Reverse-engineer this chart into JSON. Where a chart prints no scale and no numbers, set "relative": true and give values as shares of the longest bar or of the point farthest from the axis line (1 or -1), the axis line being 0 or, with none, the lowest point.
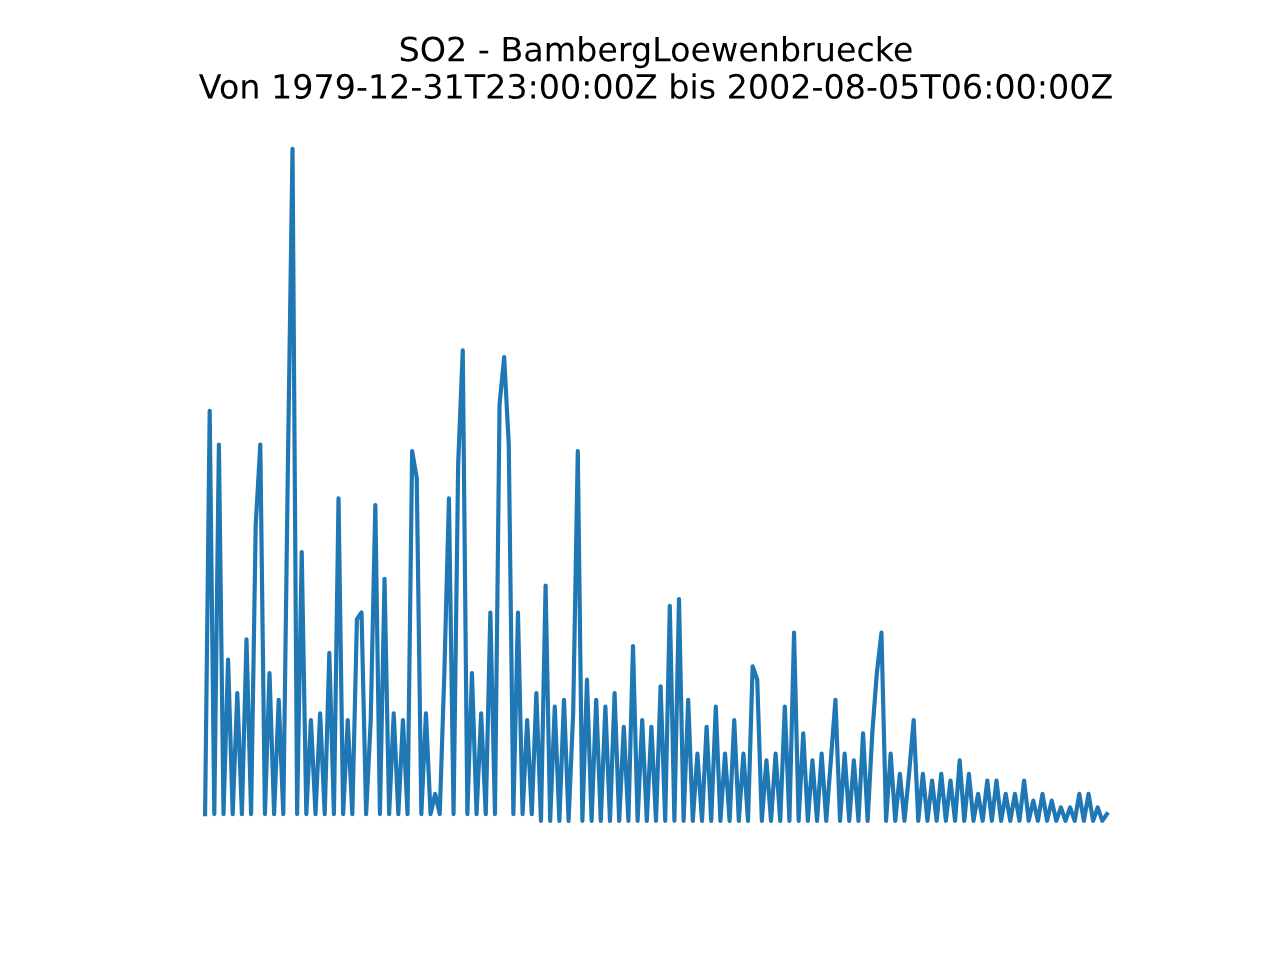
{
  "chart_data": {
    "type": "line",
    "title": "SO2 - BambergLoewenbruecke",
    "subtitle": "Von 1979-12-31T23:00:00Z bis 2002-08-05T06:00:00Z",
    "relative": true,
    "categories": [
      null,
      null,
      null,
      null,
      null,
      null,
      null,
      null,
      null,
      null,
      null,
      null,
      null,
      null,
      null,
      null,
      null,
      null,
      null,
      null,
      null,
      null,
      null,
      null,
      null,
      null,
      null,
      null,
      null,
      null,
      null,
      null,
      null,
      null,
      null,
      null,
      null,
      null,
      null,
      null,
      null,
      null,
      null,
      null,
      null,
      null,
      null,
      null,
      null,
      null,
      null,
      null,
      null,
      null,
      null,
      null,
      null,
      null,
      null,
      null,
      null,
      null,
      null,
      null,
      null,
      null,
      null,
      null,
      null,
      null,
      null,
      null,
      null,
      null,
      null,
      null,
      null,
      null,
      null,
      null,
      null,
      null,
      null,
      null,
      null,
      null,
      null,
      null,
      null,
      null,
      null,
      null,
      null,
      null,
      null,
      null,
      null,
      null,
      null,
      null,
      null,
      null,
      null,
      null,
      null,
      null,
      null,
      null,
      null,
      null,
      null,
      null,
      null,
      null,
      null,
      null,
      null,
      null,
      null,
      null,
      null,
      null,
      null,
      null,
      null,
      null,
      null,
      null,
      null,
      null,
      null,
      null,
      null,
      null,
      null,
      null,
      null,
      null,
      null,
      null,
      null,
      null,
      null,
      null,
      null,
      null,
      null,
      null,
      null,
      null,
      null,
      null,
      null,
      null,
      null,
      null,
      null,
      null,
      null,
      null,
      null,
      null,
      null,
      null,
      null,
      null,
      null,
      null,
      null,
      null,
      null,
      null,
      null,
      null,
      null,
      null,
      null,
      null,
      null,
      null,
      null,
      null,
      null,
      null,
      null,
      null,
      null,
      null,
      null,
      null,
      null,
      null,
      null,
      null,
      null,
      null,
      null
    ],
    "series": [
      {
        "color": "#1f77b4",
        "values": [
          0.01,
          0.61,
          0.01,
          0.56,
          0.01,
          0.24,
          0.01,
          0.19,
          0.01,
          0.27,
          0.01,
          0.44,
          0.56,
          0.01,
          0.22,
          0.01,
          0.18,
          0.01,
          0.53,
          1,
          0.01,
          0.4,
          0.01,
          0.15,
          0.01,
          0.16,
          0.01,
          0.25,
          0.01,
          0.48,
          0.01,
          0.15,
          0.01,
          0.3,
          0.31,
          0.01,
          0.15,
          0.47,
          0.01,
          0.36,
          0.01,
          0.16,
          0.01,
          0.15,
          0.01,
          0.55,
          0.51,
          0.01,
          0.16,
          0.01,
          0.04,
          0.01,
          0.22,
          0.48,
          0.01,
          0.53,
          0.7,
          0.01,
          0.22,
          0.01,
          0.16,
          0.01,
          0.31,
          0.01,
          0.62,
          0.69,
          0.56,
          0.01,
          0.31,
          0.01,
          0.15,
          0.01,
          0.19,
          0,
          0.35,
          0,
          0.17,
          0,
          0.18,
          0,
          0.16,
          0.55,
          0,
          0.21,
          0,
          0.18,
          0,
          0.17,
          0,
          0.19,
          0,
          0.14,
          0,
          0.26,
          0,
          0.15,
          0,
          0.14,
          0,
          0.2,
          0,
          0.32,
          0,
          0.33,
          0,
          0.18,
          0,
          0.1,
          0,
          0.14,
          0,
          0.17,
          0,
          0.1,
          0,
          0.15,
          0,
          0.1,
          0,
          0.23,
          0.21,
          0,
          0.09,
          0,
          0.1,
          0,
          0.17,
          0,
          0.28,
          0,
          0.13,
          0,
          0.09,
          0,
          0.1,
          0,
          0.09,
          0.18,
          0,
          0.1,
          0,
          0.09,
          0,
          0.13,
          0,
          0.13,
          0.22,
          0.28,
          0,
          0.1,
          0,
          0.07,
          0,
          0.07,
          0.15,
          0,
          0.07,
          0,
          0.06,
          0,
          0.07,
          0,
          0.06,
          0,
          0.09,
          0,
          0.07,
          0,
          0.04,
          0,
          0.06,
          0,
          0.06,
          0,
          0.04,
          0,
          0.04,
          0,
          0.06,
          0,
          0.03,
          0,
          0.04,
          0,
          0.03,
          0,
          0.02,
          0,
          0.02,
          0,
          0.04,
          0,
          0.04,
          0,
          0.02,
          0,
          0.01
        ]
      }
    ]
  }
}
